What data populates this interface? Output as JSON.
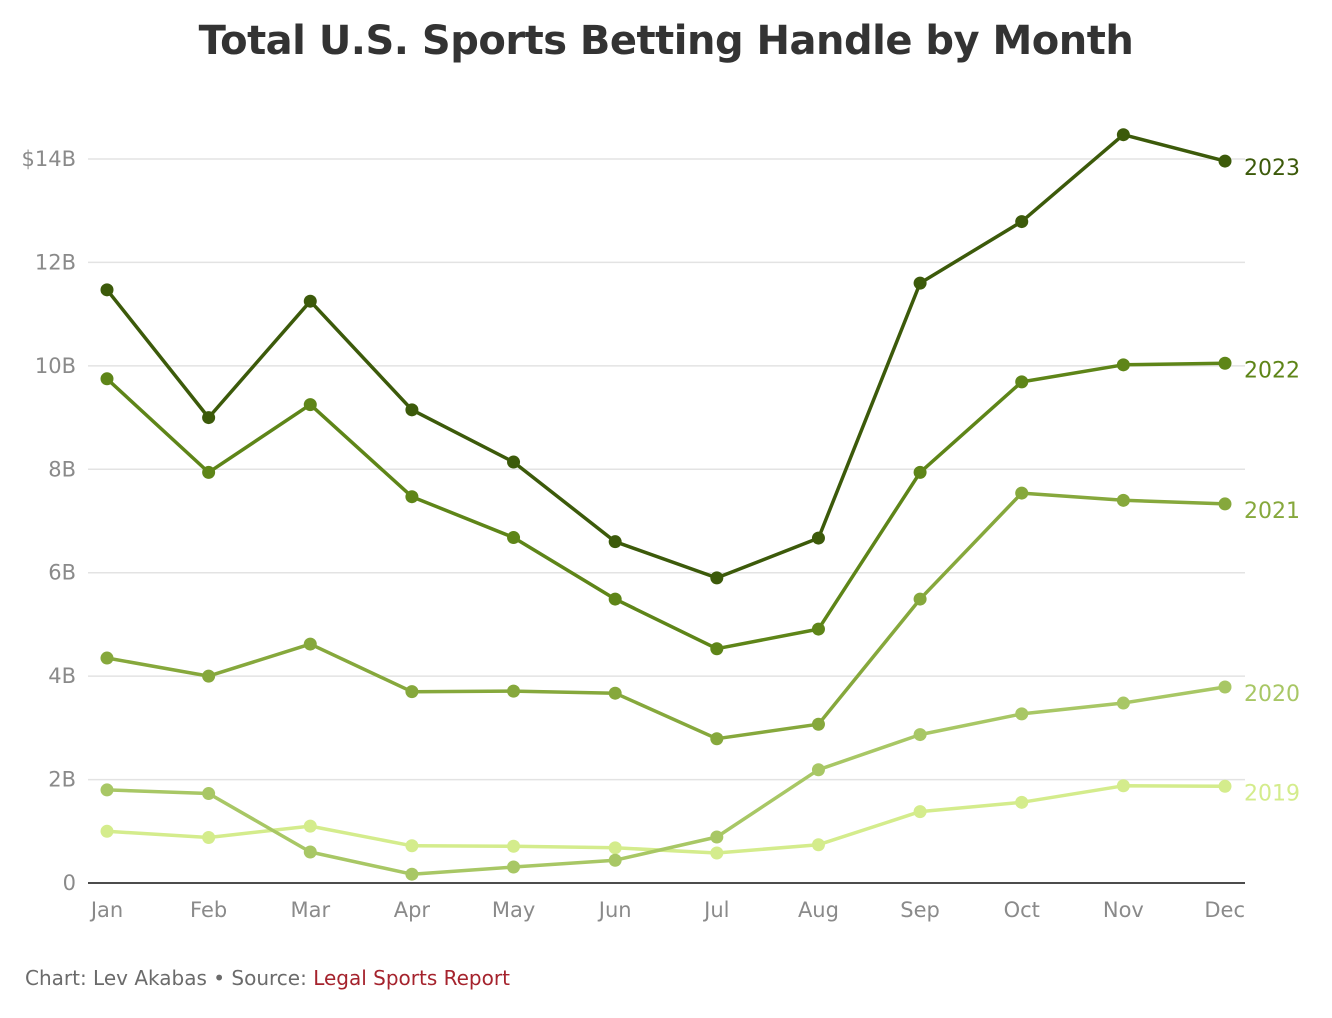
{
  "title": "Total U.S. Sports Betting Handle by Month",
  "footer": {
    "credit": "Chart: Lev Akabas • Source: ",
    "source": "Legal Sports Report"
  },
  "chart_data": {
    "type": "line",
    "title": "Total U.S. Sports Betting Handle by Month",
    "xlabel": "",
    "ylabel": "",
    "categories": [
      "Jan",
      "Feb",
      "Mar",
      "Apr",
      "May",
      "Jun",
      "Jul",
      "Aug",
      "Sep",
      "Oct",
      "Nov",
      "Dec"
    ],
    "ylim": [
      0,
      14
    ],
    "yticks": [
      0,
      2,
      4,
      6,
      8,
      10,
      12,
      14
    ],
    "ytick_labels": [
      "0",
      "2B",
      "4B",
      "6B",
      "8B",
      "10B",
      "12B",
      "$14B"
    ],
    "grid": true,
    "legend": "direct labels at right end of each line",
    "series": [
      {
        "name": "2019",
        "color": "#d4ec8c",
        "values": [
          1.0,
          0.88,
          1.1,
          0.72,
          0.71,
          0.68,
          0.58,
          0.74,
          1.38,
          1.56,
          1.88,
          1.87
        ]
      },
      {
        "name": "2020",
        "color": "#a8c765",
        "values": [
          1.8,
          1.73,
          0.6,
          0.17,
          0.31,
          0.44,
          0.89,
          2.19,
          2.87,
          3.27,
          3.48,
          3.79
        ]
      },
      {
        "name": "2021",
        "color": "#86a83c",
        "values": [
          4.35,
          4.0,
          4.62,
          3.7,
          3.71,
          3.67,
          2.79,
          3.07,
          5.49,
          7.54,
          7.4,
          7.33
        ]
      },
      {
        "name": "2022",
        "color": "#5e8518",
        "values": [
          9.75,
          7.94,
          9.25,
          7.47,
          6.68,
          5.49,
          4.53,
          4.91,
          7.94,
          9.69,
          10.02,
          10.05
        ]
      },
      {
        "name": "2023",
        "color": "#3c5a0a",
        "values": [
          11.47,
          9.0,
          11.25,
          9.15,
          8.14,
          6.6,
          5.9,
          6.67,
          11.6,
          12.79,
          14.47,
          13.96
        ]
      }
    ]
  }
}
